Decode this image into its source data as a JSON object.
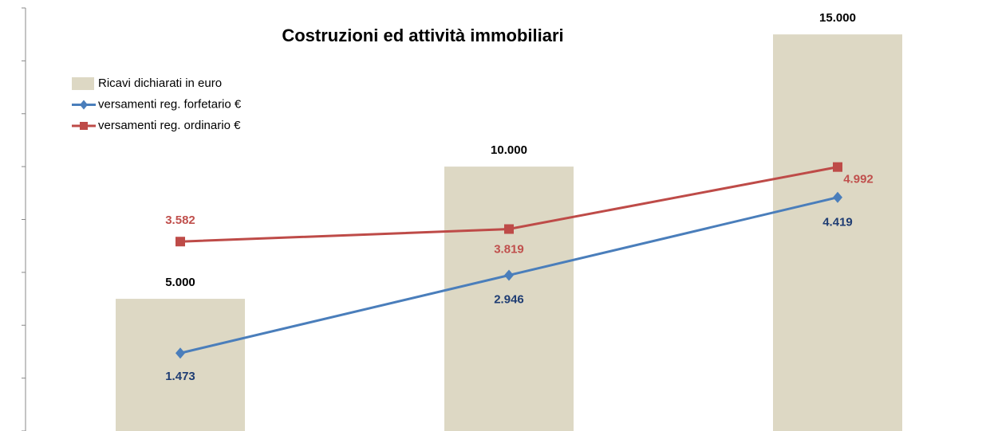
{
  "chart_data": {
    "type": "bar-line",
    "title": "Costruzioni ed attività immobiliari",
    "categories": [
      null,
      null,
      null
    ],
    "ylim": [
      0,
      16000
    ],
    "yticks": [
      0,
      2000,
      4000,
      6000,
      8000,
      10000,
      12000,
      14000,
      16000
    ],
    "y2lim": [
      0,
      8000
    ],
    "legend": "upper left",
    "series": [
      {
        "name": "Ricavi dichiarati in euro",
        "kind": "bar",
        "color": "#ddd8c4",
        "label_color": "#000000",
        "values": [
          5000,
          10000,
          15000
        ],
        "value_labels": [
          "5.000",
          "10.000",
          "15.000"
        ]
      },
      {
        "name": "versamenti  reg. forfetario €",
        "kind": "line",
        "axis": "y2",
        "marker": "diamond",
        "color": "#4a7ebb",
        "label_color": "#1f3d73",
        "values": [
          1473,
          2946,
          4419
        ],
        "value_labels": [
          "1.473",
          "2.946",
          "4.419"
        ]
      },
      {
        "name": "versamenti reg. ordinario €",
        "kind": "line",
        "axis": "y2",
        "marker": "square",
        "color": "#be4b48",
        "label_color": "#c0504d",
        "values": [
          3582,
          3819,
          4992
        ],
        "value_labels": [
          "3.582",
          "3.819",
          "4.992"
        ]
      }
    ]
  }
}
